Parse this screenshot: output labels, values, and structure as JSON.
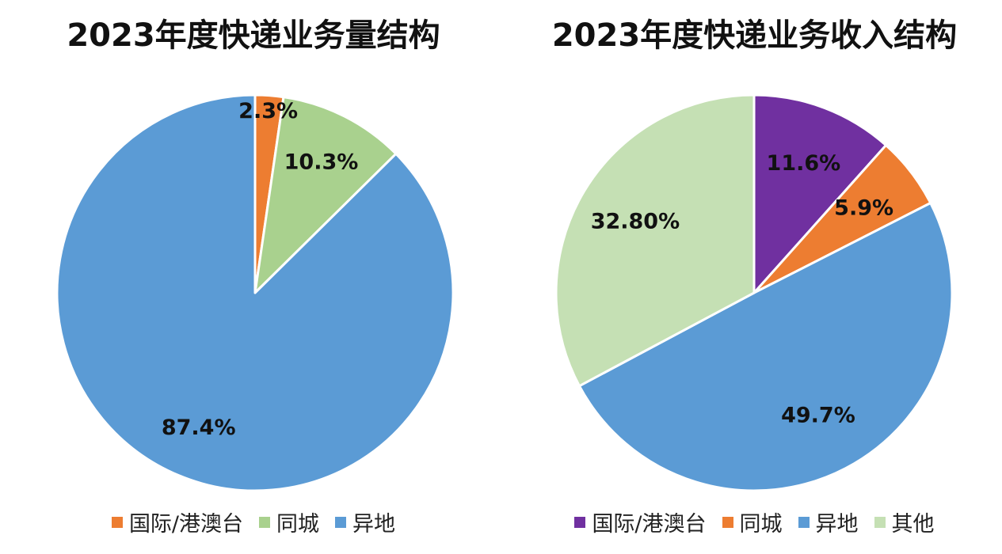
{
  "chart_data": [
    {
      "type": "pie",
      "title": "2023年度快递业务量结构",
      "slices": [
        {
          "label": "国际/港澳台",
          "value": 2.3,
          "display": "2.3%",
          "color": "#ED7D31"
        },
        {
          "label": "同城",
          "value": 10.3,
          "display": "10.3%",
          "color": "#A9D18E"
        },
        {
          "label": "异地",
          "value": 87.4,
          "display": "87.4%",
          "color": "#5B9BD5"
        }
      ],
      "legend": {
        "position": "bottom"
      }
    },
    {
      "type": "pie",
      "title": "2023年度快递业务收入结构",
      "slices": [
        {
          "label": "国际/港澳台",
          "value": 11.6,
          "display": "11.6%",
          "color": "#7030A0"
        },
        {
          "label": "同城",
          "value": 5.9,
          "display": "5.9%",
          "color": "#ED7D31"
        },
        {
          "label": "异地",
          "value": 49.7,
          "display": "49.7%",
          "color": "#5B9BD5"
        },
        {
          "label": "其他",
          "value": 32.8,
          "display": "32.80%",
          "color": "#C5E0B4"
        }
      ],
      "legend": {
        "position": "bottom"
      }
    }
  ]
}
